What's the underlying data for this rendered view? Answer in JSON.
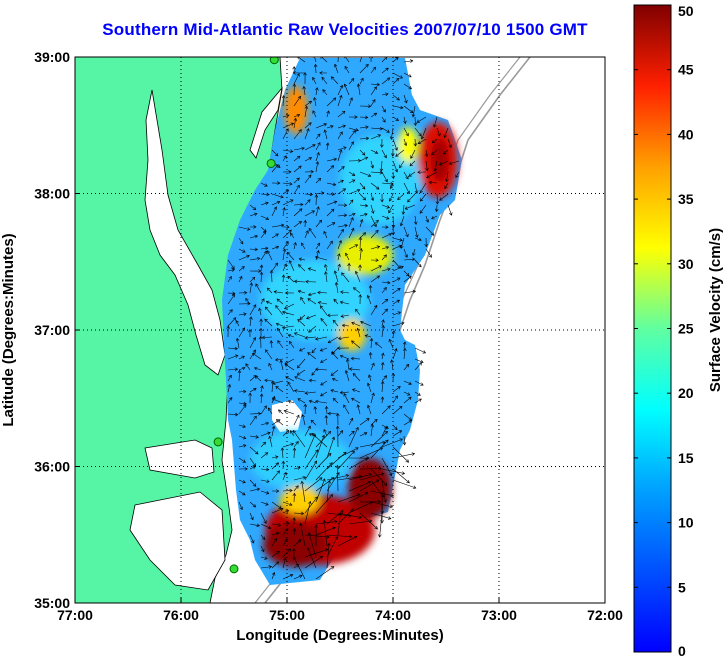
{
  "title": "Southern Mid-Atlantic Raw Velocities 2007/07/10 1500 GMT",
  "chart_data": {
    "type": "heatmap",
    "title": "Southern Mid-Atlantic Raw Velocities 2007/07/10 1500 GMT",
    "xlabel": "Longitude (Degrees:Minutes)",
    "ylabel": "Latitude (Degrees:Minutes)",
    "xlim": [
      -77.0,
      -72.0
    ],
    "ylim": [
      35.0,
      39.0
    ],
    "x_ticks": [
      "77:00",
      "76:00",
      "75:00",
      "74:00",
      "73:00",
      "72:00"
    ],
    "y_ticks": [
      "39:00",
      "38:00",
      "37:00",
      "36:00",
      "35:00"
    ],
    "grid": true,
    "colorbar": {
      "label": "Surface Velocity (cm/s)",
      "range": [
        0,
        50
      ],
      "ticks": [
        "50",
        "45",
        "40",
        "35",
        "30",
        "25",
        "20",
        "15",
        "10",
        "5",
        "0"
      ]
    },
    "radar_sites": [
      {
        "lon": -75.12,
        "lat": 38.98
      },
      {
        "lon": -75.15,
        "lat": 38.22
      },
      {
        "lon": -75.65,
        "lat": 36.18
      },
      {
        "lon": -75.5,
        "lat": 35.25
      }
    ]
  },
  "colors": {
    "land": "#55f5a5",
    "title": "#0000ff"
  }
}
